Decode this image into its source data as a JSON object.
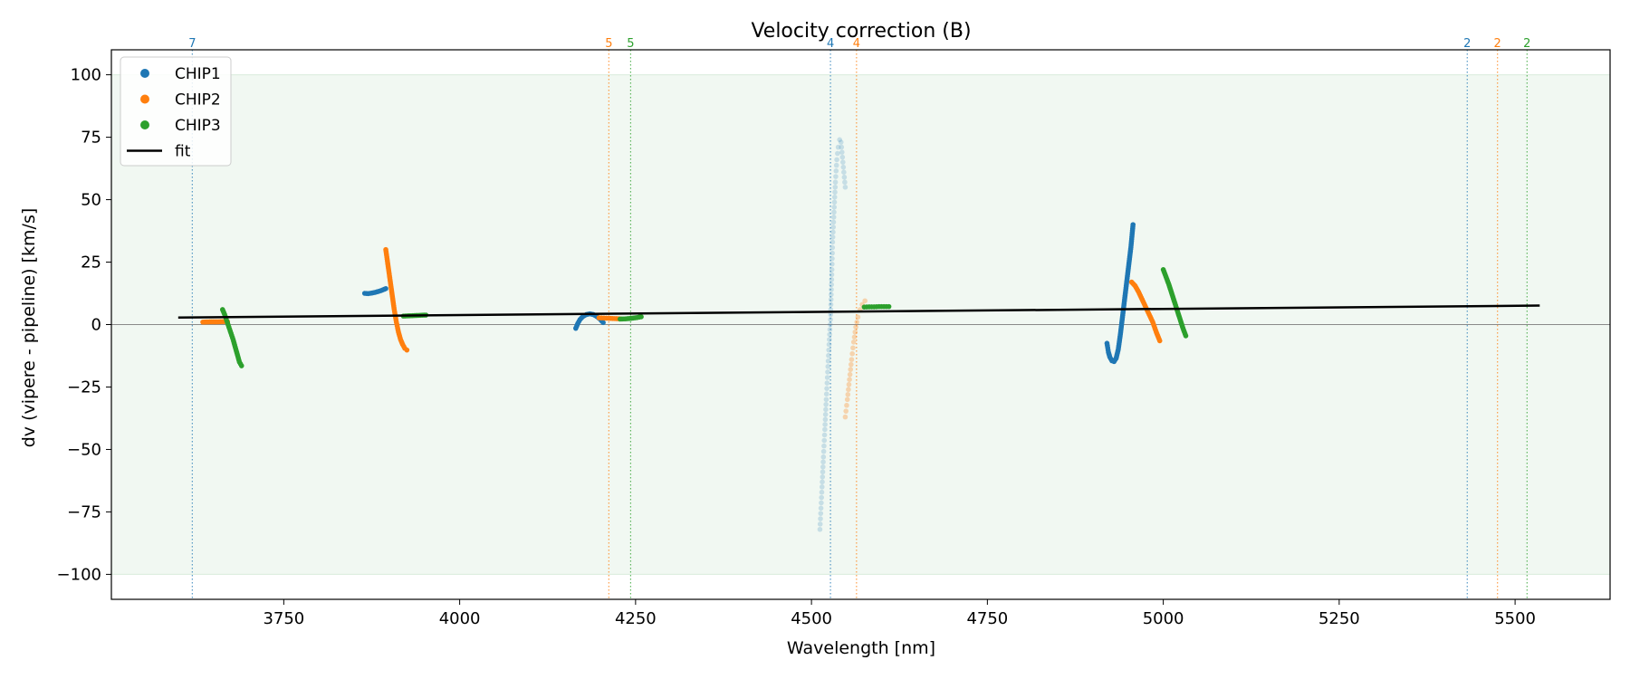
{
  "chart_data": {
    "type": "scatter",
    "title": "Velocity correction (B)",
    "xlabel": "Wavelength [nm]",
    "ylabel": "dv (vipere - pipeline) [km/s]",
    "xlim": [
      3505,
      5635
    ],
    "ylim": [
      -110,
      110
    ],
    "xticks": [
      3750,
      4000,
      4250,
      4500,
      4750,
      5000,
      5250,
      5500
    ],
    "xtick_labels": [
      "3750",
      "4000",
      "4250",
      "4500",
      "4750",
      "5000",
      "5250",
      "5500"
    ],
    "yticks": [
      -100,
      -75,
      -50,
      -25,
      0,
      25,
      50,
      75,
      100
    ],
    "ytick_labels": [
      "−100",
      "−75",
      "−50",
      "−25",
      "0",
      "25",
      "50",
      "75",
      "100"
    ],
    "grid": false,
    "accepted_band": [
      -100,
      100
    ],
    "zero_line": 0,
    "legend_position": "top-left",
    "legend": [
      {
        "label": "CHIP1",
        "kind": "marker",
        "color": "#1f77b4"
      },
      {
        "label": "CHIP2",
        "kind": "marker",
        "color": "#ff7f0e"
      },
      {
        "label": "CHIP3",
        "kind": "marker",
        "color": "#2ca02c"
      },
      {
        "label": "fit",
        "kind": "line",
        "color": "#000000"
      }
    ],
    "colors": {
      "CHIP1": "#1f77b4",
      "CHIP2": "#ff7f0e",
      "CHIP3": "#2ca02c",
      "fit": "#000000",
      "band": "#e8f4ea"
    },
    "fit": {
      "x": [
        3600,
        5535
      ],
      "y": [
        2.8,
        7.6
      ]
    },
    "order_markers": [
      {
        "x": 3620,
        "label": "7",
        "color": "#1f77b4"
      },
      {
        "x": 4212,
        "label": "5",
        "color": "#ff7f0e"
      },
      {
        "x": 4243,
        "label": "5",
        "color": "#2ca02c"
      },
      {
        "x": 4527,
        "label": "4",
        "color": "#1f77b4"
      },
      {
        "x": 4564,
        "label": "4",
        "color": "#ff7f0e"
      },
      {
        "x": 5432,
        "label": "2",
        "color": "#1f77b4"
      },
      {
        "x": 5475,
        "label": "2",
        "color": "#ff7f0e"
      },
      {
        "x": 5517,
        "label": "2",
        "color": "#2ca02c"
      }
    ],
    "series": [
      {
        "name": "CHIP1",
        "color": "#1f77b4",
        "segments": [
          {
            "alpha": 1,
            "points": [
              [
                3865,
                12.5
              ],
              [
                3870,
                12.4
              ],
              [
                3875,
                12.6
              ],
              [
                3880,
                12.9
              ],
              [
                3885,
                13.3
              ],
              [
                3890,
                13.8
              ],
              [
                3895,
                14.4
              ]
            ]
          },
          {
            "alpha": 1,
            "points": [
              [
                4165,
                -1.5
              ],
              [
                4168,
                0.5
              ],
              [
                4171,
                2.0
              ],
              [
                4175,
                3.2
              ],
              [
                4180,
                4.0
              ],
              [
                4185,
                4.3
              ],
              [
                4190,
                4.0
              ],
              [
                4195,
                3.2
              ],
              [
                4200,
                2.0
              ],
              [
                4204,
                0.8
              ]
            ]
          },
          {
            "alpha": 0.2,
            "points": [
              [
                4512,
                -82
              ],
              [
                4515,
                -65
              ],
              [
                4517,
                -53
              ],
              [
                4519,
                -42
              ],
              [
                4521,
                -30
              ],
              [
                4523,
                -19
              ],
              [
                4525,
                -8
              ],
              [
                4527,
                2
              ],
              [
                4528,
                12
              ],
              [
                4529,
                22
              ],
              [
                4530,
                33
              ],
              [
                4532,
                45
              ],
              [
                4534,
                57
              ],
              [
                4536,
                66
              ],
              [
                4538,
                71
              ],
              [
                4540,
                74
              ],
              [
                4542,
                73
              ],
              [
                4544,
                67
              ],
              [
                4546,
                61
              ],
              [
                4548,
                55
              ]
            ]
          },
          {
            "alpha": 1,
            "points": [
              [
                4920,
                -7.5
              ],
              [
                4922,
                -11
              ],
              [
                4924,
                -13
              ],
              [
                4927,
                -14.5
              ],
              [
                4930,
                -14.8
              ],
              [
                4933,
                -13.5
              ],
              [
                4936,
                -10
              ],
              [
                4939,
                -4
              ],
              [
                4942,
                3
              ],
              [
                4945,
                10
              ],
              [
                4948,
                17
              ],
              [
                4951,
                24
              ],
              [
                4954,
                31
              ],
              [
                4957,
                40
              ]
            ]
          }
        ]
      },
      {
        "name": "CHIP2",
        "color": "#ff7f0e",
        "segments": [
          {
            "alpha": 1,
            "points": [
              [
                3635,
                1.0
              ],
              [
                3645,
                1.1
              ],
              [
                3655,
                1.1
              ],
              [
                3665,
                1.2
              ],
              [
                3670,
                1.2
              ]
            ]
          },
          {
            "alpha": 1,
            "points": [
              [
                3895,
                30
              ],
              [
                3898,
                24
              ],
              [
                3901,
                18
              ],
              [
                3904,
                12
              ],
              [
                3907,
                6
              ],
              [
                3910,
                1
              ],
              [
                3913,
                -3
              ],
              [
                3916,
                -6
              ],
              [
                3919,
                -8
              ],
              [
                3922,
                -9.5
              ],
              [
                3925,
                -10.2
              ]
            ]
          },
          {
            "alpha": 1,
            "points": [
              [
                4198,
                2.7
              ],
              [
                4205,
                2.6
              ],
              [
                4212,
                2.5
              ],
              [
                4220,
                2.4
              ],
              [
                4228,
                2.3
              ]
            ]
          },
          {
            "alpha": 0.3,
            "points": [
              [
                4548,
                -37
              ],
              [
                4551,
                -30
              ],
              [
                4554,
                -22
              ],
              [
                4557,
                -14
              ],
              [
                4560,
                -7
              ],
              [
                4563,
                -1
              ],
              [
                4566,
                3
              ],
              [
                4569,
                6
              ],
              [
                4572,
                8
              ],
              [
                4576,
                9.5
              ]
            ]
          },
          {
            "alpha": 1,
            "points": [
              [
                4955,
                17
              ],
              [
                4960,
                15.5
              ],
              [
                4965,
                13
              ],
              [
                4970,
                10
              ],
              [
                4975,
                7
              ],
              [
                4980,
                4
              ],
              [
                4985,
                1
              ],
              [
                4990,
                -3
              ],
              [
                4995,
                -6.5
              ]
            ]
          }
        ]
      },
      {
        "name": "CHIP3",
        "color": "#2ca02c",
        "segments": [
          {
            "alpha": 1,
            "points": [
              [
                3663,
                6
              ],
              [
                3666,
                4
              ],
              [
                3669,
                1.5
              ],
              [
                3672,
                -1
              ],
              [
                3675,
                -3.5
              ],
              [
                3678,
                -6
              ],
              [
                3681,
                -9
              ],
              [
                3684,
                -12
              ],
              [
                3687,
                -15
              ],
              [
                3690,
                -16.5
              ]
            ]
          },
          {
            "alpha": 1,
            "points": [
              [
                3920,
                3.4
              ],
              [
                3928,
                3.5
              ],
              [
                3936,
                3.6
              ],
              [
                3944,
                3.7
              ],
              [
                3952,
                3.8
              ]
            ]
          },
          {
            "alpha": 1,
            "points": [
              [
                4228,
                2.2
              ],
              [
                4236,
                2.3
              ],
              [
                4244,
                2.5
              ],
              [
                4252,
                2.8
              ],
              [
                4258,
                3.1
              ]
            ]
          },
          {
            "alpha": 1,
            "points": [
              [
                4575,
                7.0
              ],
              [
                4582,
                7.1
              ],
              [
                4589,
                7.1
              ],
              [
                4596,
                7.2
              ],
              [
                4603,
                7.2
              ],
              [
                4610,
                7.2
              ]
            ]
          },
          {
            "alpha": 1,
            "points": [
              [
                5000,
                22
              ],
              [
                5004,
                19
              ],
              [
                5008,
                16
              ],
              [
                5012,
                12.5
              ],
              [
                5016,
                9
              ],
              [
                5020,
                5.5
              ],
              [
                5024,
                2
              ],
              [
                5028,
                -1.5
              ],
              [
                5032,
                -4.5
              ]
            ]
          }
        ]
      }
    ]
  }
}
